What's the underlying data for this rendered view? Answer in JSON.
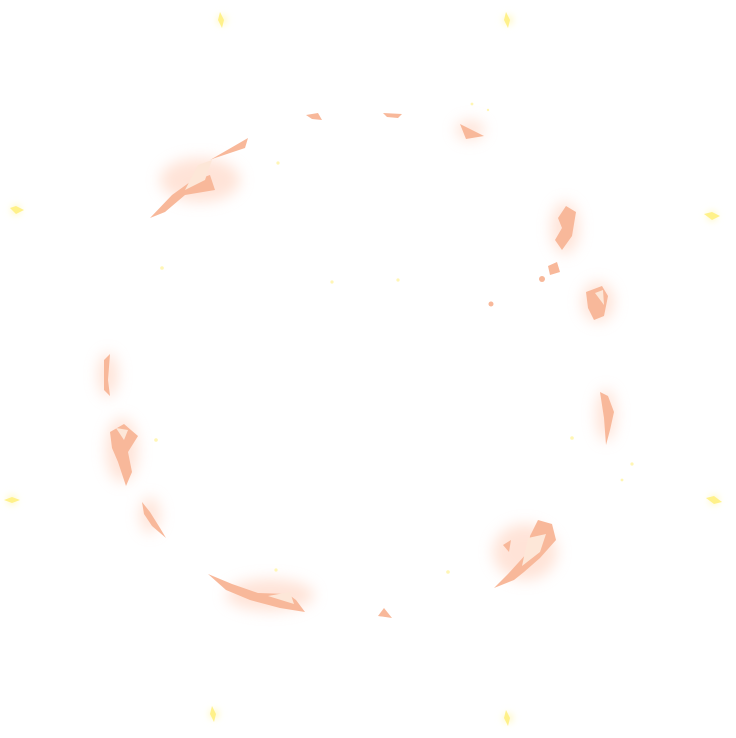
{
  "effect": {
    "kind": "ember-ring-burst",
    "colors": {
      "background": "#ffffff",
      "shard_fill": "#f8b89a",
      "shard_highlight": "#fde7d8",
      "glow": "#ffd4c2",
      "spark": "#fff3a0",
      "spark_glow": "#fffbe0"
    }
  }
}
